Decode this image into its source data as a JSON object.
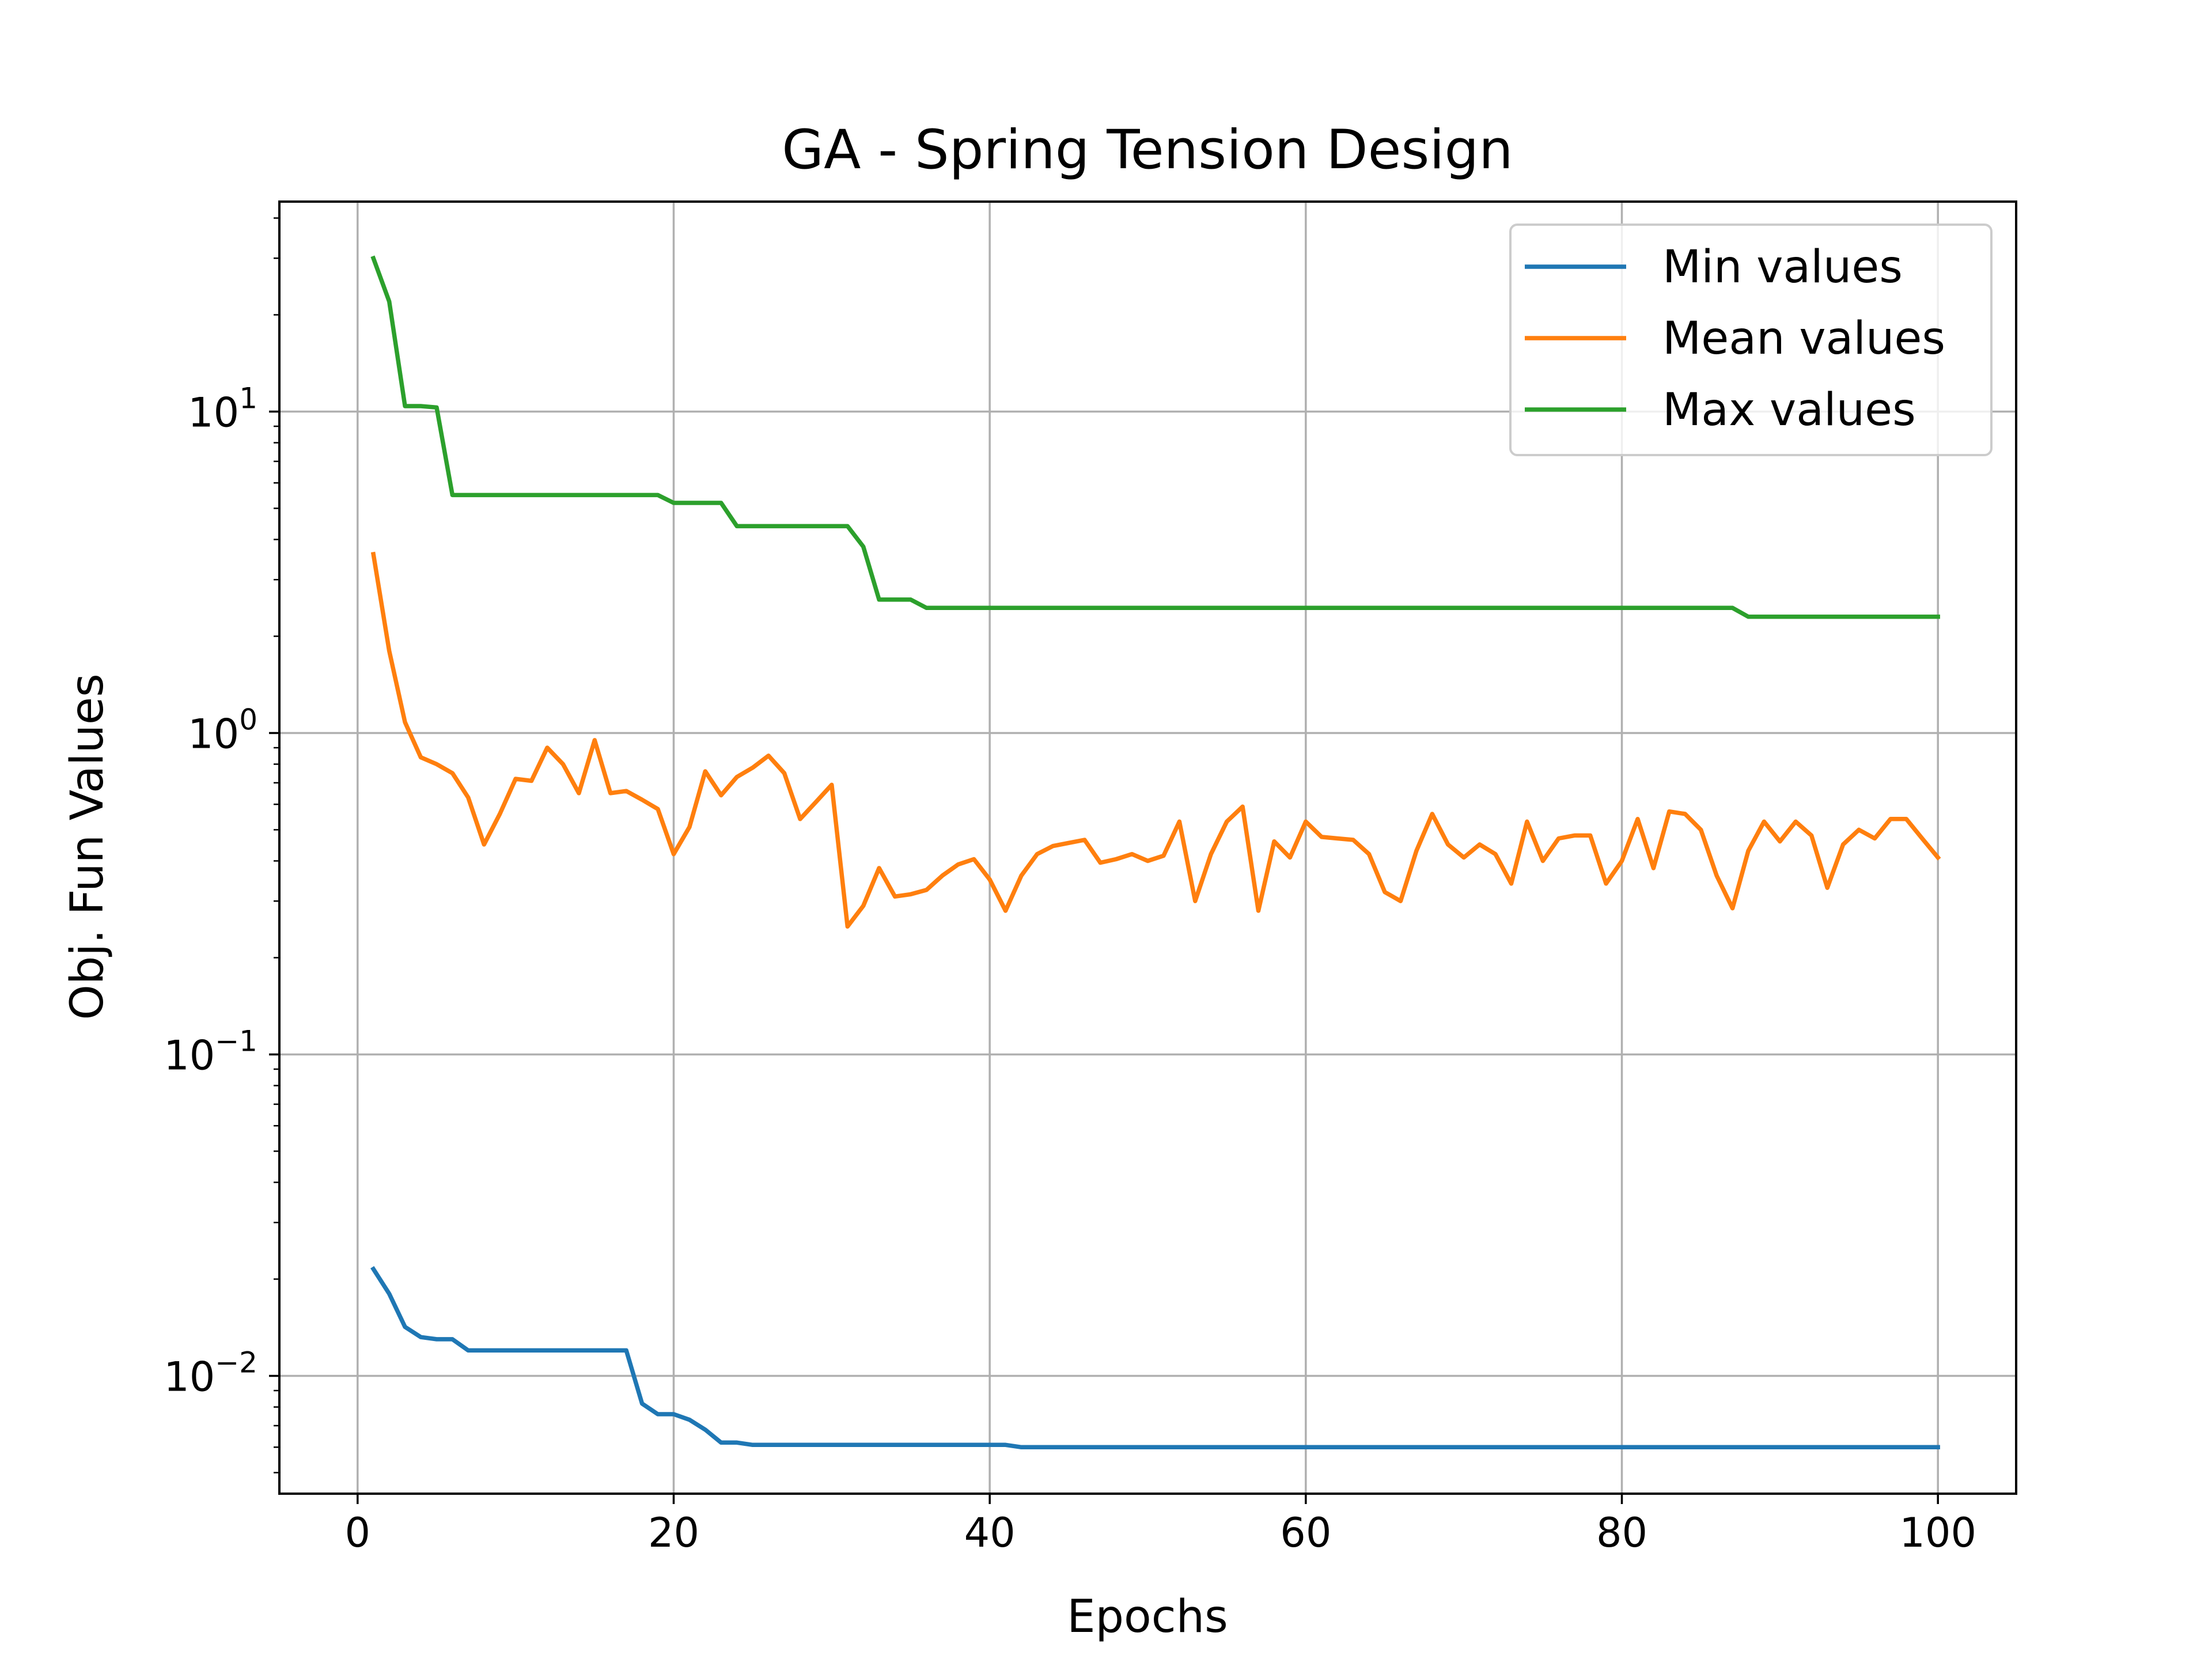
{
  "chart_data": {
    "type": "line",
    "title": "GA - Spring Tension Design",
    "xlabel": "Epochs",
    "ylabel": "Obj. Fun Values",
    "yscale": "log",
    "xlim": [
      -4.95,
      104.95
    ],
    "ylim": [
      0.0043,
      45
    ],
    "grid": true,
    "legend_position": "upper right",
    "xticks": [
      0,
      20,
      40,
      60,
      80,
      100
    ],
    "xtick_labels": [
      "0",
      "20",
      "40",
      "60",
      "80",
      "100"
    ],
    "yticks": [
      0.01,
      0.1,
      1,
      10
    ],
    "ytick_labels": [
      {
        "base": "10",
        "exp": "−2"
      },
      {
        "base": "10",
        "exp": "−1"
      },
      {
        "base": "10",
        "exp": "0"
      },
      {
        "base": "10",
        "exp": "1"
      }
    ],
    "x": [
      1,
      2,
      3,
      4,
      5,
      6,
      7,
      8,
      9,
      10,
      11,
      12,
      13,
      14,
      15,
      16,
      17,
      18,
      19,
      20,
      21,
      22,
      23,
      24,
      25,
      26,
      27,
      28,
      29,
      30,
      31,
      32,
      33,
      34,
      35,
      36,
      37,
      38,
      39,
      40,
      41,
      42,
      43,
      44,
      45,
      46,
      47,
      48,
      49,
      50,
      51,
      52,
      53,
      54,
      55,
      56,
      57,
      58,
      59,
      60,
      61,
      62,
      63,
      64,
      65,
      66,
      67,
      68,
      69,
      70,
      71,
      72,
      73,
      74,
      75,
      76,
      77,
      78,
      79,
      80,
      81,
      82,
      83,
      84,
      85,
      86,
      87,
      88,
      89,
      90,
      91,
      92,
      93,
      94,
      95,
      96,
      97,
      98,
      99,
      100
    ],
    "series": [
      {
        "name": "Min values",
        "color": "#1f77b4",
        "values": [
          0.0215,
          0.018,
          0.0142,
          0.0132,
          0.013,
          0.013,
          0.012,
          0.012,
          0.012,
          0.012,
          0.012,
          0.012,
          0.012,
          0.012,
          0.012,
          0.012,
          0.012,
          0.0082,
          0.0076,
          0.0076,
          0.0073,
          0.0068,
          0.0062,
          0.0062,
          0.0061,
          0.0061,
          0.0061,
          0.0061,
          0.0061,
          0.0061,
          0.0061,
          0.0061,
          0.0061,
          0.0061,
          0.0061,
          0.0061,
          0.0061,
          0.0061,
          0.0061,
          0.0061,
          0.0061,
          0.006,
          0.006,
          0.006,
          0.006,
          0.006,
          0.006,
          0.006,
          0.006,
          0.006,
          0.006,
          0.006,
          0.006,
          0.006,
          0.006,
          0.006,
          0.006,
          0.006,
          0.006,
          0.006,
          0.006,
          0.006,
          0.006,
          0.006,
          0.006,
          0.006,
          0.006,
          0.006,
          0.006,
          0.006,
          0.006,
          0.006,
          0.006,
          0.006,
          0.006,
          0.006,
          0.006,
          0.006,
          0.006,
          0.006,
          0.006,
          0.006,
          0.006,
          0.006,
          0.006,
          0.006,
          0.006,
          0.006,
          0.006,
          0.006,
          0.006,
          0.006,
          0.006,
          0.006,
          0.006,
          0.006,
          0.006,
          0.006,
          0.006,
          0.006
        ]
      },
      {
        "name": "Mean values",
        "color": "#ff7f0e",
        "values": [
          3.6,
          1.8,
          1.08,
          0.84,
          0.8,
          0.75,
          0.63,
          0.45,
          0.56,
          0.72,
          0.71,
          0.9,
          0.8,
          0.65,
          0.95,
          0.65,
          0.66,
          0.62,
          0.58,
          0.42,
          0.51,
          0.76,
          0.64,
          0.73,
          0.78,
          0.85,
          0.75,
          0.54,
          0.61,
          0.69,
          0.25,
          0.29,
          0.38,
          0.31,
          0.315,
          0.325,
          0.36,
          0.39,
          0.405,
          0.35,
          0.28,
          0.36,
          0.42,
          0.445,
          0.455,
          0.465,
          0.395,
          0.405,
          0.42,
          0.4,
          0.415,
          0.53,
          0.3,
          0.42,
          0.53,
          0.59,
          0.28,
          0.46,
          0.41,
          0.53,
          0.475,
          0.47,
          0.465,
          0.42,
          0.32,
          0.3,
          0.43,
          0.56,
          0.45,
          0.41,
          0.45,
          0.42,
          0.34,
          0.53,
          0.4,
          0.47,
          0.48,
          0.48,
          0.34,
          0.4,
          0.54,
          0.38,
          0.57,
          0.56,
          0.5,
          0.36,
          0.285,
          0.43,
          0.53,
          0.46,
          0.53,
          0.48,
          0.33,
          0.45,
          0.5,
          0.47,
          0.54,
          0.54,
          0.47,
          0.41
        ]
      },
      {
        "name": "Max values",
        "color": "#2ca02c",
        "values": [
          30,
          22,
          10.4,
          10.4,
          10.3,
          5.5,
          5.5,
          5.5,
          5.5,
          5.5,
          5.5,
          5.5,
          5.5,
          5.5,
          5.5,
          5.5,
          5.5,
          5.5,
          5.5,
          5.2,
          5.2,
          5.2,
          5.2,
          4.4,
          4.4,
          4.4,
          4.4,
          4.4,
          4.4,
          4.4,
          4.4,
          3.8,
          2.6,
          2.6,
          2.6,
          2.45,
          2.45,
          2.45,
          2.45,
          2.45,
          2.45,
          2.45,
          2.45,
          2.45,
          2.45,
          2.45,
          2.45,
          2.45,
          2.45,
          2.45,
          2.45,
          2.45,
          2.45,
          2.45,
          2.45,
          2.45,
          2.45,
          2.45,
          2.45,
          2.45,
          2.45,
          2.45,
          2.45,
          2.45,
          2.45,
          2.45,
          2.45,
          2.45,
          2.45,
          2.45,
          2.45,
          2.45,
          2.45,
          2.45,
          2.45,
          2.45,
          2.45,
          2.45,
          2.45,
          2.45,
          2.45,
          2.45,
          2.45,
          2.45,
          2.45,
          2.45,
          2.45,
          2.3,
          2.3,
          2.3,
          2.3,
          2.3,
          2.3,
          2.3,
          2.3,
          2.3,
          2.3,
          2.3,
          2.3,
          2.3
        ]
      }
    ]
  }
}
